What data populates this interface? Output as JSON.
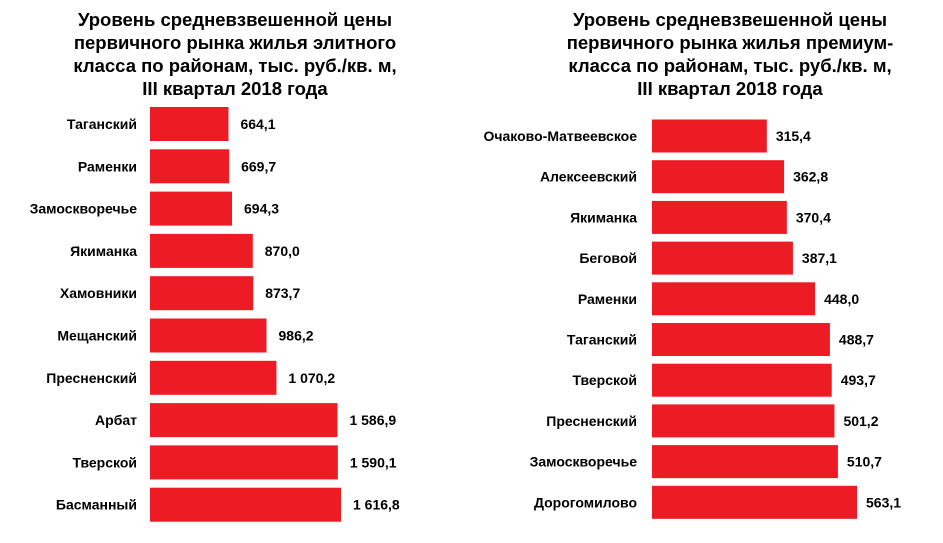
{
  "chart_data": [
    {
      "type": "bar",
      "orientation": "horizontal",
      "title": "Уровень средневзвешенной цены первичного рынка жилья элитного класса  по районам, тыс. руб./кв. м, III квартал 2018 года",
      "title_lines": [
        "Уровень средневзвешенной цены",
        "первичного рынка жилья элитного",
        "класса  по районам, тыс. руб./кв. м,",
        "III квартал 2018 года"
      ],
      "categories": [
        "Таганский",
        "Раменки",
        "Замоскворечье",
        "Якиманка",
        "Хамовники",
        "Мещанский",
        "Пресненский",
        "Арбат",
        "Тверской",
        "Басманный"
      ],
      "values": [
        664.1,
        669.7,
        694.3,
        870.0,
        873.7,
        986.2,
        1070.2,
        1586.9,
        1590.1,
        1616.8
      ],
      "value_labels": [
        "664,1",
        "669,7",
        "694,3",
        "870,0",
        "873,7",
        "986,2",
        "1 070,2",
        "1 586,9",
        "1 590,1",
        "1 616,8"
      ],
      "bar_color": "#ed1c24",
      "grid": false,
      "legend": "none"
    },
    {
      "type": "bar",
      "orientation": "horizontal",
      "title": "Уровень средневзвешенной цены первичного рынка жилья премиум-класса  по районам, тыс. руб./кв. м, III квартал 2018 года",
      "title_lines": [
        "Уровень средневзвешенной цены",
        "первичного рынка жилья премиум-",
        "класса  по районам, тыс. руб./кв. м,",
        "III квартал 2018 года"
      ],
      "categories": [
        "Очаково-Матвеевское",
        "Алексеевский",
        "Якиманка",
        "Беговой",
        "Раменки",
        "Таганский",
        "Тверской",
        "Пресненский",
        "Замоскворечье",
        "Дорогомилово"
      ],
      "values": [
        315.4,
        362.8,
        370.4,
        387.1,
        448.0,
        488.7,
        493.7,
        501.2,
        510.7,
        563.1
      ],
      "value_labels": [
        "315,4",
        "362,8",
        "370,4",
        "387,1",
        "448,0",
        "488,7",
        "493,7",
        "501,2",
        "510,7",
        "563,1"
      ],
      "bar_color": "#ed1c24",
      "grid": false,
      "legend": "none"
    }
  ]
}
